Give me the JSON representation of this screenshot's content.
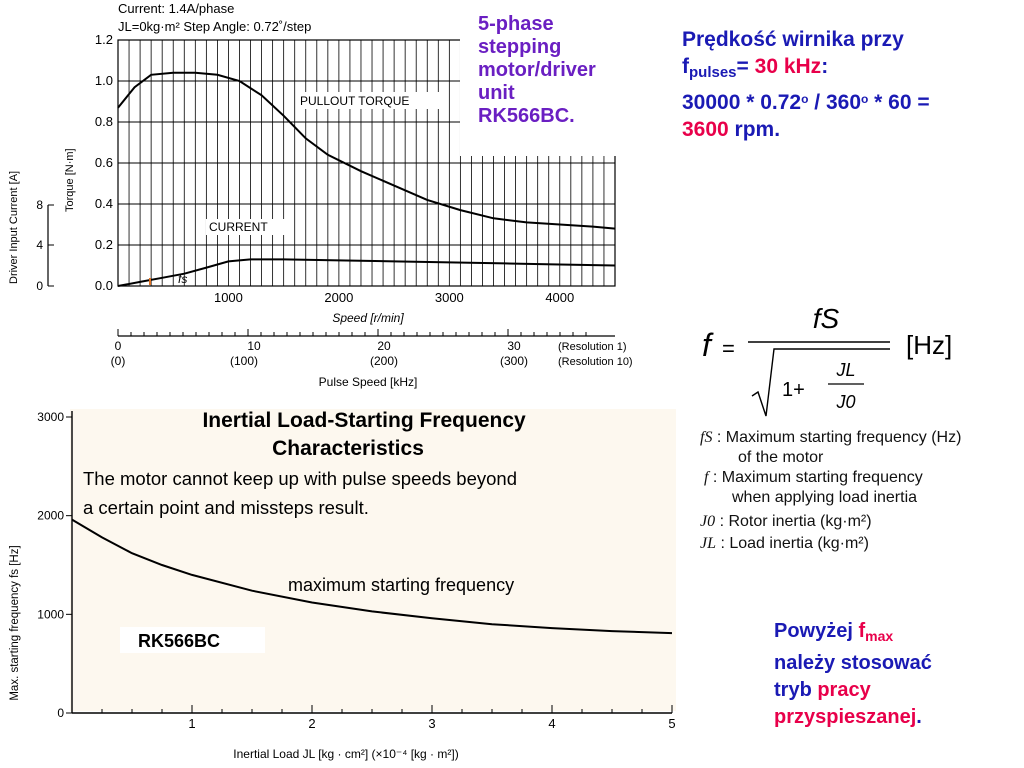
{
  "top_chart": {
    "header_line1": "Current: 1.4A/phase",
    "header_line2": "JL=0kg·m²     Step Angle: 0.72˚/step",
    "product_label": [
      "5-phase",
      "stepping",
      "motor/driver",
      "unit",
      "RK566BC."
    ],
    "label_pullout": "PULLOUT TORQUE",
    "label_current": "CURRENT",
    "label_fs": "fs",
    "ylabel_current": "Driver Input Current [A]",
    "ylabel_torque": "Torque [N·m]",
    "xlabel_speed": "Speed [r/min]",
    "xlabel_pulse": "Pulse Speed [kHz]",
    "pulse_ticks_res1": [
      "0",
      "10",
      "20",
      "30"
    ],
    "pulse_ticks_res10": [
      "(0)",
      "(100)",
      "(200)",
      "(300)"
    ],
    "resolution1": "(Resolution 1)",
    "resolution10": "(Resolution 10)",
    "current_ticks": [
      "8",
      "4",
      "0"
    ],
    "colors": {
      "product_label": "#6a1fc2"
    }
  },
  "chart_data": [
    {
      "type": "line",
      "title": "",
      "xlabel": "Speed [r/min]",
      "ylabel": "Torque [N·m]",
      "xlim": [
        0,
        4500
      ],
      "ylim": [
        0,
        1.2
      ],
      "x_ticks": [
        1000,
        2000,
        3000,
        4000
      ],
      "y_ticks": [
        0,
        0.2,
        0.4,
        0.6,
        0.8,
        1.0,
        1.2
      ],
      "grid": true,
      "series": [
        {
          "name": "PULLOUT TORQUE",
          "x": [
            0,
            150,
            300,
            500,
            700,
            900,
            1100,
            1300,
            1500,
            1700,
            1900,
            2200,
            2500,
            2800,
            3100,
            3400,
            3700,
            4000,
            4300,
            4500
          ],
          "y": [
            0.87,
            0.97,
            1.03,
            1.04,
            1.04,
            1.03,
            1.0,
            0.93,
            0.83,
            0.72,
            0.64,
            0.56,
            0.49,
            0.42,
            0.37,
            0.33,
            0.31,
            0.3,
            0.29,
            0.28
          ]
        },
        {
          "name": "CURRENT",
          "x": [
            0,
            200,
            400,
            600,
            800,
            1000,
            1200,
            1500,
            2000,
            2500,
            3000,
            3500,
            4000,
            4500
          ],
          "y": [
            0.0,
            0.02,
            0.04,
            0.06,
            0.09,
            0.12,
            0.13,
            0.13,
            0.125,
            0.12,
            0.115,
            0.11,
            0.105,
            0.1
          ]
        }
      ]
    },
    {
      "type": "line",
      "title": "Inertial Load-Starting Frequency Characteristics",
      "subtitle": "The motor cannot keep up with pulse speeds beyond a certain point and missteps result.",
      "xlabel": "Inertial Load   JL [kg · cm²] (×10⁻⁴ [kg · m²])",
      "ylabel": "Max. starting frequency fs [Hz]",
      "xlim": [
        0,
        5
      ],
      "ylim": [
        0,
        3000
      ],
      "x_ticks": [
        1,
        2,
        3,
        4,
        5
      ],
      "y_ticks": [
        0,
        1000,
        2000,
        3000
      ],
      "grid": false,
      "annotations": [
        "maximum starting frequency",
        "RK566BC"
      ],
      "series": [
        {
          "name": "maximum starting frequency",
          "x": [
            0,
            0.25,
            0.5,
            0.75,
            1,
            1.5,
            2,
            2.5,
            3,
            3.5,
            4,
            4.5,
            5
          ],
          "y": [
            1960,
            1780,
            1620,
            1500,
            1400,
            1240,
            1120,
            1030,
            960,
            900,
            860,
            830,
            810
          ]
        }
      ]
    }
  ],
  "formula": {
    "lhs": "f",
    "eq": "=",
    "numerator": "fS",
    "one_plus": "1+",
    "frac_num": "JL",
    "frac_den": "J0",
    "unit": "[Hz]"
  },
  "legend": [
    {
      "sym": "fS",
      "text": ": Maximum starting frequency (Hz)"
    },
    {
      "sym": "",
      "text": "of the motor"
    },
    {
      "sym": "f",
      "text": ": Maximum   starting   frequency"
    },
    {
      "sym": "",
      "text": "when applying load inertia"
    },
    {
      "sym": "J0",
      "text": ": Rotor inertia (kg·m²)"
    },
    {
      "sym": "JL",
      "text": ": Load inertia (kg·m²)"
    }
  ],
  "speed_text": {
    "line1": "Prędkość wirnika przy",
    "f": "f",
    "sub": "pulses",
    "eq": "= ",
    "value": "30 kHz",
    "colon": ":",
    "line3_a": "30000 * 0.72",
    "deg": "o",
    "line3_b": " / 360",
    "line3_c": " * 60 =",
    "result": "3600",
    "unit": " rpm."
  },
  "accel_text": {
    "word1": "Powyżej  ",
    "f": "f",
    "sub": "max",
    "line2": "należy stosować",
    "line3_a": "tryb ",
    "line3_b": "pracy",
    "line4": "przyspieszanej",
    "dot": "."
  }
}
